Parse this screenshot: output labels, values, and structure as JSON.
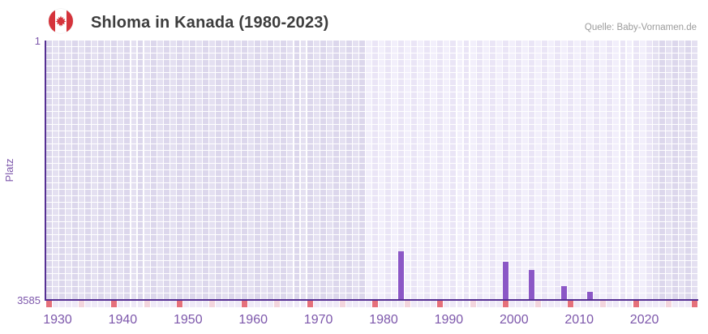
{
  "header": {
    "title": "Shloma in Kanada (1980-2023)",
    "source": "Quelle: Baby-Vornamen.de"
  },
  "chart_data": {
    "type": "bar",
    "title": "Shloma in Kanada (1980-2023)",
    "source": "Quelle: Baby-Vornamen.de",
    "ylabel": "Platz",
    "y_axis": {
      "top_tick": "1",
      "bottom_tick": "3585",
      "min": 1,
      "max": 3585,
      "inverted": true
    },
    "x_axis": {
      "first_year": 1930,
      "last_year": 2029,
      "tick_step": 10,
      "tick_labels": [
        "1930",
        "1940",
        "1950",
        "1960",
        "1970",
        "1980",
        "1990",
        "2000",
        "2010",
        "2020"
      ]
    },
    "highlight_period": {
      "from": 1979,
      "to": 2022
    },
    "series": [
      {
        "name": "Platz",
        "points": [
          {
            "year": 1984,
            "rank": 2915
          },
          {
            "year": 2000,
            "rank": 3055
          },
          {
            "year": 2004,
            "rank": 3170
          },
          {
            "year": 2009,
            "rank": 3400
          },
          {
            "year": 2013,
            "rank": 3475
          }
        ]
      }
    ],
    "legend": "none",
    "grid": "on",
    "colors": {
      "bar": "#8b57c6",
      "axis_line": "#563093",
      "grid_cell_dark": "#dcd7ec",
      "grid_cell_dark_alt": "#e4e0f1",
      "grid_cell_light": "#eae5f6",
      "grid_cell_light_alt": "#f2effb",
      "tick_cell_default": "#efeaf7",
      "tick_cell_decade": "#e5707b",
      "tick_cell_half_decade": "#f3d5dd",
      "axis_label": "#7d57ab",
      "title_text": "#3d3d3d",
      "source_text": "#9b9b9b",
      "flag_red": "#d5333b"
    }
  }
}
